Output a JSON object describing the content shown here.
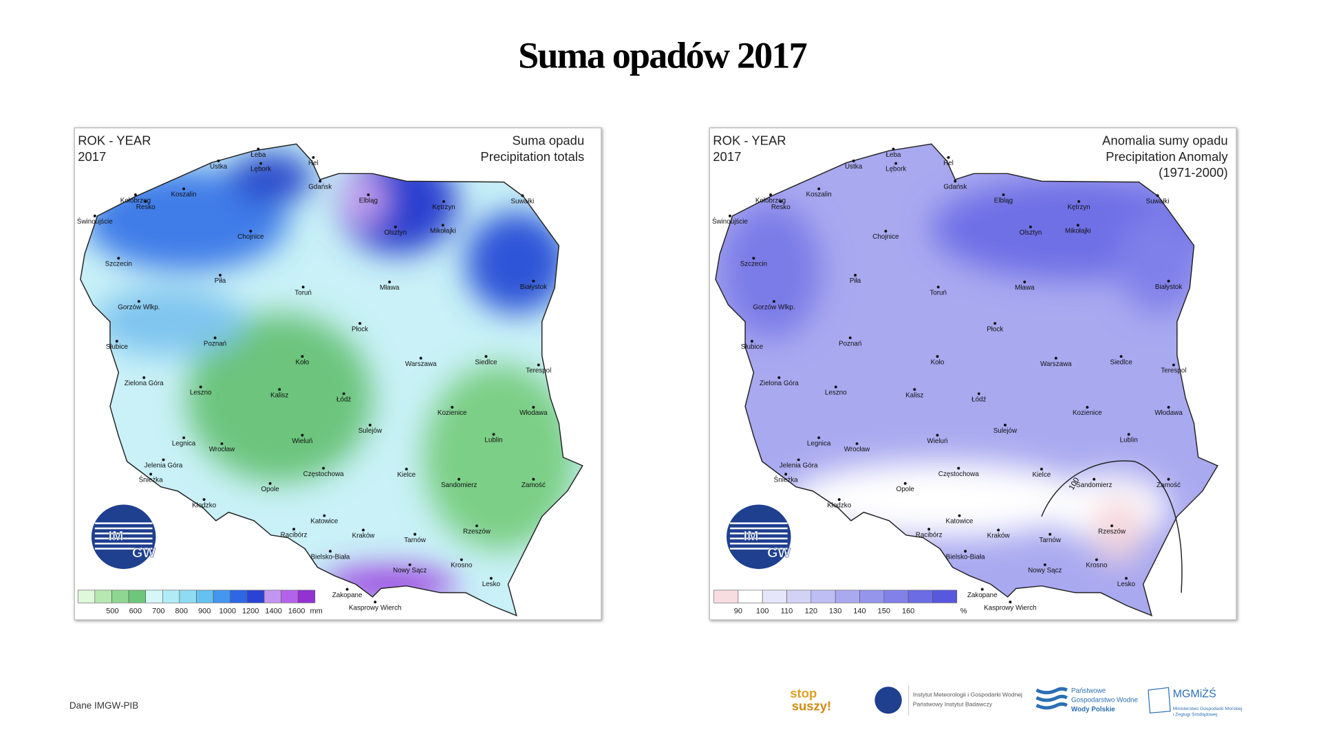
{
  "title": "Suma opadów 2017",
  "maps": [
    {
      "header": [
        "ROK - YEAR",
        "2017"
      ],
      "title": [
        "Suma opadu",
        "Precipitation totals"
      ],
      "legend": {
        "labels": [
          500,
          600,
          700,
          800,
          900,
          1000,
          1200,
          1400,
          1600
        ],
        "unit": "mm"
      }
    },
    {
      "header": [
        "ROK - YEAR",
        "2017"
      ],
      "title": [
        "Anomalia sumy opadu",
        "Precipitation Anomaly",
        "(1971-2000)"
      ],
      "legend": {
        "labels": [
          90,
          100,
          110,
          120,
          130,
          140,
          150,
          160
        ],
        "unit": "%"
      },
      "isoline_label": 100
    }
  ],
  "logo": [
    "IM",
    "GW"
  ],
  "cities": [
    "Łeba",
    "Hel",
    "Ustka",
    "Lębork",
    "Gdańsk",
    "Koszalin",
    "Kołobrzeg",
    "Elbląg",
    "Kętrzyn",
    "Suwałki",
    "Świnoujście",
    "Resko",
    "Chojnice",
    "Olsztyn",
    "Mikołajki",
    "Szczecin",
    "Piła",
    "Toruń",
    "Mława",
    "Białystok",
    "Gorzów Wlkp.",
    "Płock",
    "Słubice",
    "Poznań",
    "Warszawa",
    "Siedlce",
    "Terespol",
    "Koło",
    "Zielona Góra",
    "Leszno",
    "Kalisz",
    "Łódź",
    "Kozienice",
    "Włodawa",
    "Legnica",
    "Wrocław",
    "Wieluń",
    "Sulejów",
    "Lublin",
    "Jelenia Góra",
    "Śnieżka",
    "Częstochowa",
    "Kielce",
    "Sandomierz",
    "Zamość",
    "Opole",
    "Kłodzko",
    "Katowice",
    "Racibórz",
    "Kraków",
    "Tarnów",
    "Rzeszów",
    "Bielsko-Biała",
    "Krosno",
    "Nowy Sącz",
    "Lesko",
    "Zakopane",
    "Kasprowy Wierch"
  ],
  "footer": {
    "source": "Dane IMGW-PIB",
    "logos": [
      [
        "stop",
        "suszy!"
      ],
      [
        "Instytut Meteorologii i Gospodarki Wodnej",
        "Państwowy Instytut Badawczy"
      ],
      [
        "Państwowe",
        "Gospodarstwo Wodne",
        "Wody Polskie"
      ],
      [
        "MGMiŻŚ",
        "Ministerstwo Gospodarki Morskiej",
        "i Żeglugi Śródlądowej"
      ]
    ]
  }
}
